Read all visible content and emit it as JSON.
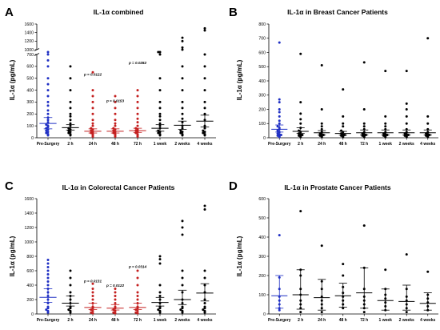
{
  "figure": {
    "colors": {
      "blue": "#1f2fc4",
      "red": "#c41f1f",
      "black": "#000000"
    },
    "categories": [
      "Pre-Surgery",
      "2 h",
      "24 h",
      "48 h",
      "72 h",
      "1 week",
      "2 weeks",
      "4 weeks"
    ]
  },
  "chart_data": [
    {
      "type": "scatter",
      "panel_letter": "A",
      "title": "IL-1α combined",
      "ylabel": "IL-1α (pg/mL)",
      "axis_break": true,
      "yticks_lower": [
        0,
        100,
        200,
        300,
        400,
        500,
        600,
        700
      ],
      "yticks_upper": [
        1000,
        1200,
        1400,
        1600
      ],
      "y_break_range": [
        700,
        1000
      ],
      "ylim": [
        0,
        1600
      ],
      "categories": [
        "Pre-Surgery",
        "2 h",
        "24 h",
        "48 h",
        "72 h",
        "1 week",
        "2 weeks",
        "4 weeks"
      ],
      "point_colors": [
        "blue",
        "black",
        "red",
        "red",
        "red",
        "black",
        "black",
        "black"
      ],
      "mean": [
        120,
        85,
        55,
        55,
        60,
        80,
        105,
        140
      ],
      "sem_low": [
        75,
        65,
        40,
        40,
        45,
        55,
        70,
        90
      ],
      "sem_high": [
        170,
        110,
        75,
        75,
        80,
        110,
        140,
        190
      ],
      "points": [
        [
          20,
          30,
          40,
          50,
          60,
          70,
          80,
          90,
          100,
          110,
          130,
          150,
          170,
          200,
          230,
          270,
          300,
          350,
          400,
          450,
          500,
          600,
          650,
          700,
          750
        ],
        [
          20,
          30,
          40,
          50,
          60,
          70,
          80,
          100,
          120,
          150,
          180,
          200,
          250,
          300,
          400,
          500,
          600
        ],
        [
          10,
          20,
          30,
          40,
          50,
          60,
          70,
          80,
          100,
          120,
          150,
          200,
          250,
          300,
          350,
          400,
          550
        ],
        [
          10,
          20,
          30,
          40,
          50,
          60,
          70,
          80,
          100,
          120,
          150,
          200,
          250,
          300,
          350
        ],
        [
          10,
          20,
          30,
          40,
          50,
          60,
          70,
          80,
          100,
          130,
          160,
          200,
          250,
          300,
          350,
          400
        ],
        [
          20,
          30,
          40,
          50,
          60,
          80,
          100,
          120,
          150,
          180,
          200,
          250,
          300,
          400,
          500,
          700,
          760,
          800
        ],
        [
          20,
          30,
          40,
          50,
          60,
          80,
          100,
          130,
          160,
          200,
          250,
          300,
          400,
          500,
          600,
          1000,
          1050,
          1200,
          1280
        ],
        [
          20,
          30,
          40,
          50,
          60,
          80,
          100,
          150,
          200,
          250,
          300,
          400,
          500,
          600,
          700,
          1450,
          1500
        ]
      ],
      "annotations": [
        {
          "category": "24 h",
          "text": "p = 0.0122",
          "y": 520
        },
        {
          "category": "48 h",
          "text": "p = 0.0153",
          "y": 300
        },
        {
          "category": "72 h",
          "text": "p = 0.0282",
          "y": 620
        }
      ]
    },
    {
      "type": "scatter",
      "panel_letter": "B",
      "title": "IL-1α in Breast Cancer Patients",
      "ylabel": "IL-1α (pg/mL)",
      "axis_break": false,
      "yticks": [
        0,
        100,
        200,
        300,
        400,
        500,
        600,
        700,
        800
      ],
      "ylim": [
        0,
        800
      ],
      "categories": [
        "Pre-Surgery",
        "2 h",
        "24 h",
        "48 h",
        "72 h",
        "1 week",
        "2 weeks",
        "4 weeks"
      ],
      "point_colors": [
        "blue",
        "black",
        "black",
        "black",
        "black",
        "black",
        "black",
        "black"
      ],
      "mean": [
        60,
        45,
        35,
        30,
        35,
        35,
        35,
        35
      ],
      "sem_low": [
        40,
        30,
        20,
        18,
        20,
        20,
        20,
        20
      ],
      "sem_high": [
        90,
        70,
        50,
        45,
        55,
        55,
        55,
        55
      ],
      "points": [
        [
          5,
          10,
          15,
          20,
          25,
          30,
          40,
          50,
          60,
          70,
          80,
          100,
          120,
          150,
          180,
          200,
          250,
          270,
          670
        ],
        [
          5,
          10,
          15,
          20,
          25,
          30,
          40,
          50,
          70,
          100,
          130,
          170,
          250,
          590
        ],
        [
          5,
          10,
          15,
          20,
          25,
          30,
          40,
          60,
          80,
          100,
          200,
          510
        ],
        [
          5,
          10,
          15,
          20,
          25,
          30,
          40,
          50,
          80,
          100,
          150,
          340
        ],
        [
          5,
          10,
          15,
          20,
          25,
          30,
          40,
          60,
          80,
          100,
          200,
          530
        ],
        [
          5,
          10,
          15,
          20,
          25,
          30,
          40,
          60,
          80,
          100,
          150,
          470
        ],
        [
          5,
          10,
          15,
          20,
          25,
          30,
          40,
          60,
          100,
          150,
          200,
          240,
          470
        ],
        [
          5,
          10,
          15,
          20,
          25,
          30,
          40,
          60,
          100,
          150,
          700
        ]
      ],
      "annotations": []
    },
    {
      "type": "scatter",
      "panel_letter": "C",
      "title": "IL-1α in Colorectal Cancer Patients",
      "ylabel": "IL-1α (pg/mL)",
      "axis_break": false,
      "yticks": [
        0,
        200,
        400,
        600,
        800,
        1000,
        1200,
        1400,
        1600
      ],
      "ylim": [
        0,
        1600
      ],
      "categories": [
        "Pre-Surgery",
        "2 h",
        "24 h",
        "48 h",
        "72 h",
        "1 week",
        "2 weeks",
        "4 weeks"
      ],
      "point_colors": [
        "blue",
        "black",
        "red",
        "red",
        "red",
        "black",
        "black",
        "black"
      ],
      "mean": [
        230,
        150,
        90,
        80,
        90,
        160,
        200,
        290
      ],
      "sem_low": [
        160,
        110,
        60,
        55,
        60,
        110,
        130,
        180
      ],
      "sem_high": [
        350,
        250,
        150,
        130,
        150,
        230,
        330,
        420
      ],
      "points": [
        [
          20,
          40,
          60,
          80,
          100,
          150,
          200,
          250,
          300,
          350,
          400,
          450,
          500,
          550,
          600,
          650,
          700,
          750
        ],
        [
          20,
          40,
          60,
          80,
          100,
          150,
          200,
          250,
          300,
          400,
          500,
          600
        ],
        [
          10,
          20,
          40,
          60,
          80,
          100,
          150,
          200,
          250,
          300,
          350,
          420
        ],
        [
          10,
          20,
          40,
          60,
          80,
          100,
          150,
          200,
          250,
          300,
          350
        ],
        [
          10,
          20,
          40,
          60,
          80,
          100,
          150,
          200,
          250,
          300,
          400,
          500,
          600
        ],
        [
          20,
          40,
          60,
          80,
          100,
          150,
          200,
          250,
          300,
          400,
          700,
          760,
          800
        ],
        [
          20,
          40,
          60,
          80,
          100,
          150,
          200,
          300,
          400,
          500,
          600,
          1100,
          1200,
          1290
        ],
        [
          20,
          40,
          60,
          80,
          100,
          150,
          200,
          300,
          400,
          500,
          600,
          1450,
          1500
        ]
      ],
      "annotations": [
        {
          "category": "24 h",
          "text": "p = 0.0131",
          "y": 440
        },
        {
          "category": "48 h",
          "text": "p = 0.0122",
          "y": 380
        },
        {
          "category": "72 h",
          "text": "p = 0.0314",
          "y": 640
        }
      ]
    },
    {
      "type": "scatter",
      "panel_letter": "D",
      "title": "IL-1α in Prostate Cancer Patients",
      "ylabel": "IL-1α (pg/mL)",
      "axis_break": false,
      "yticks": [
        0,
        100,
        200,
        300,
        400,
        500,
        600
      ],
      "ylim": [
        0,
        600
      ],
      "categories": [
        "Pre-Surgery",
        "2 h",
        "24 h",
        "48 h",
        "72 h",
        "1 week",
        "2 weeks",
        "4 weeks"
      ],
      "point_colors": [
        "blue",
        "black",
        "black",
        "black",
        "black",
        "black",
        "black",
        "black"
      ],
      "mean": [
        95,
        100,
        85,
        95,
        110,
        70,
        65,
        55
      ],
      "sem_low": [
        30,
        25,
        20,
        35,
        30,
        20,
        20,
        20
      ],
      "sem_high": [
        200,
        230,
        180,
        160,
        240,
        130,
        150,
        110
      ],
      "points": [
        [
          20,
          30,
          50,
          70,
          90,
          130,
          190,
          410
        ],
        [
          10,
          30,
          50,
          70,
          100,
          130,
          200,
          230,
          535
        ],
        [
          10,
          30,
          50,
          70,
          90,
          130,
          170,
          355
        ],
        [
          30,
          50,
          70,
          90,
          110,
          140,
          200,
          260
        ],
        [
          10,
          30,
          50,
          70,
          90,
          130,
          240,
          460
        ],
        [
          20,
          40,
          60,
          80,
          100,
          130,
          230
        ],
        [
          10,
          30,
          50,
          70,
          90,
          130,
          310
        ],
        [
          20,
          40,
          60,
          80,
          100,
          220
        ]
      ],
      "annotations": []
    }
  ]
}
